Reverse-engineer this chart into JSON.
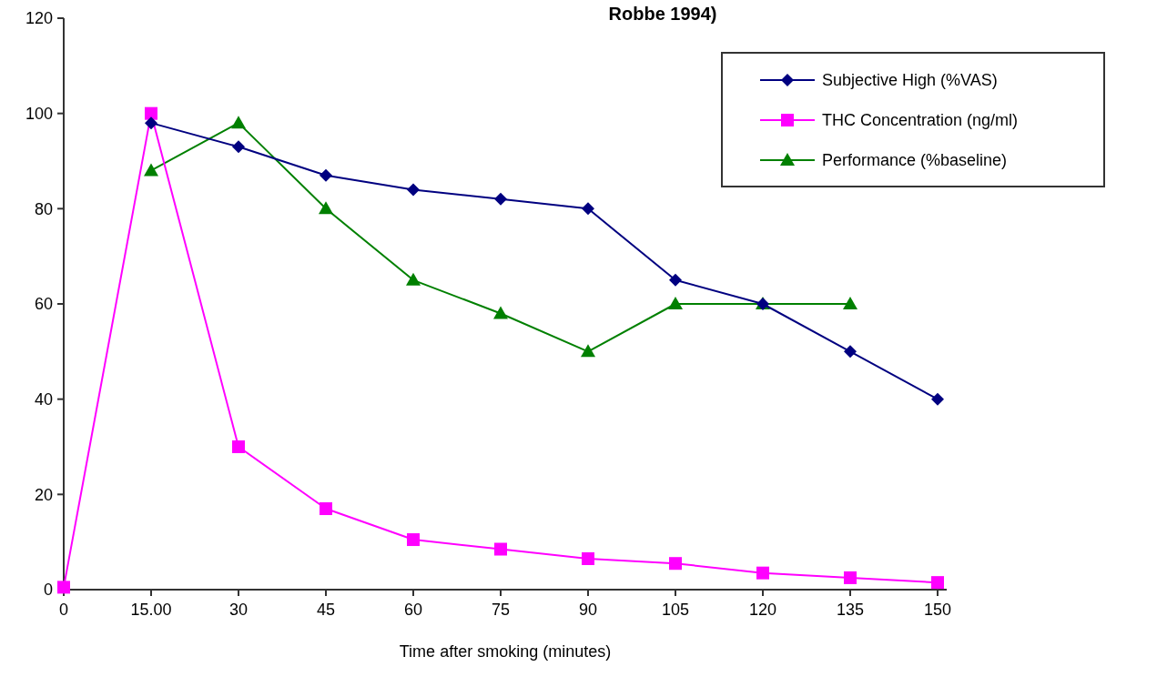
{
  "chart_data": {
    "type": "line",
    "title": "Robbe 1994)",
    "xlabel": "Time after smoking (minutes)",
    "categories": [
      "0",
      "15.00",
      "30",
      "45",
      "60",
      "75",
      "90",
      "105",
      "120",
      "135",
      "150"
    ],
    "series": [
      {
        "name": "Subjective High (%VAS)",
        "color": "#000080",
        "marker": "diamond",
        "values": [
          null,
          98,
          93,
          87,
          84,
          82,
          80,
          65,
          60,
          50,
          40
        ]
      },
      {
        "name": "THC Concentration (ng/ml)",
        "color": "#ff00ff",
        "marker": "square",
        "values": [
          0.5,
          100,
          30,
          17,
          10.5,
          8.5,
          6.5,
          5.5,
          3.5,
          2.5,
          1.5
        ]
      },
      {
        "name": "Performance (%baseline)",
        "color": "#008000",
        "marker": "triangle",
        "values": [
          null,
          88,
          98,
          80,
          65,
          58,
          50,
          60,
          60,
          60,
          null
        ]
      }
    ],
    "ylim": [
      0,
      120
    ],
    "yticks": [
      0,
      20,
      40,
      60,
      80,
      100,
      120
    ],
    "grid": false,
    "legend": "top right"
  }
}
